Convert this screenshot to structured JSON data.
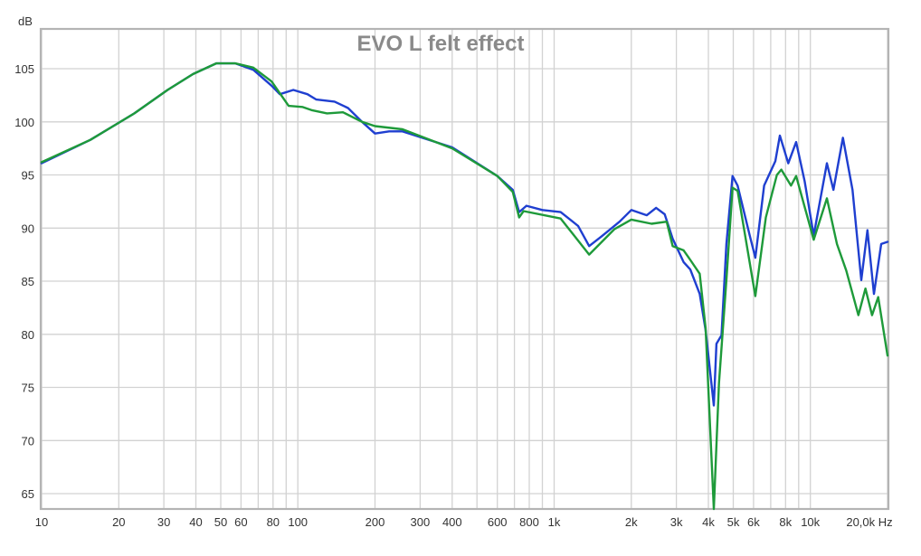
{
  "chart_data": {
    "type": "line",
    "title": "EVO L felt effect",
    "xlabel": "Hz",
    "ylabel": "dB",
    "xscale": "log",
    "xlim": [
      10,
      20000
    ],
    "ylim": [
      63.7,
      108.9
    ],
    "grid": true,
    "legend": null,
    "x_ticks": [
      {
        "value": 10,
        "label": "10"
      },
      {
        "value": 20,
        "label": "20"
      },
      {
        "value": 30,
        "label": "30"
      },
      {
        "value": 40,
        "label": "40"
      },
      {
        "value": 50,
        "label": "50"
      },
      {
        "value": 60,
        "label": "60"
      },
      {
        "value": 80,
        "label": "80"
      },
      {
        "value": 100,
        "label": "100"
      },
      {
        "value": 200,
        "label": "200"
      },
      {
        "value": 300,
        "label": "300"
      },
      {
        "value": 400,
        "label": "400"
      },
      {
        "value": 600,
        "label": "600"
      },
      {
        "value": 800,
        "label": "800"
      },
      {
        "value": 1000,
        "label": "1k"
      },
      {
        "value": 2000,
        "label": "2k"
      },
      {
        "value": 3000,
        "label": "3k"
      },
      {
        "value": 4000,
        "label": "4k"
      },
      {
        "value": 5000,
        "label": "5k"
      },
      {
        "value": 6000,
        "label": "6k"
      },
      {
        "value": 8000,
        "label": "8k"
      },
      {
        "value": 10000,
        "label": "10k"
      },
      {
        "value": 20000,
        "label": "20,0k Hz"
      }
    ],
    "x_gridlines": [
      10,
      20,
      30,
      40,
      50,
      60,
      70,
      80,
      90,
      100,
      200,
      300,
      400,
      500,
      600,
      700,
      800,
      900,
      1000,
      2000,
      3000,
      4000,
      5000,
      6000,
      7000,
      8000,
      9000,
      10000,
      20000
    ],
    "y_ticks": [
      105,
      100,
      95,
      90,
      85,
      80,
      75,
      70,
      65
    ],
    "series": [
      {
        "name": "blue",
        "color": "#1f3fd0",
        "points": [
          [
            10,
            96.1
          ],
          [
            15.5,
            98.3
          ],
          [
            23,
            100.8
          ],
          [
            31,
            103.0
          ],
          [
            39,
            104.5
          ],
          [
            48,
            105.5
          ],
          [
            57,
            105.5
          ],
          [
            67,
            104.9
          ],
          [
            79,
            103.4
          ],
          [
            85,
            102.6
          ],
          [
            96,
            103.0
          ],
          [
            109,
            102.6
          ],
          [
            118,
            102.1
          ],
          [
            139,
            101.9
          ],
          [
            157,
            101.3
          ],
          [
            178,
            100.0
          ],
          [
            200,
            98.9
          ],
          [
            227,
            99.1
          ],
          [
            256,
            99.1
          ],
          [
            400,
            97.6
          ],
          [
            600,
            94.9
          ],
          [
            690,
            93.6
          ],
          [
            730,
            91.5
          ],
          [
            780,
            92.1
          ],
          [
            900,
            91.7
          ],
          [
            1060,
            91.5
          ],
          [
            1240,
            90.2
          ],
          [
            1370,
            88.3
          ],
          [
            1530,
            89.2
          ],
          [
            1800,
            90.6
          ],
          [
            2000,
            91.7
          ],
          [
            2300,
            91.2
          ],
          [
            2500,
            91.9
          ],
          [
            2700,
            91.3
          ],
          [
            2900,
            89.0
          ],
          [
            3200,
            86.8
          ],
          [
            3400,
            86.1
          ],
          [
            3700,
            83.8
          ],
          [
            3900,
            80.4
          ],
          [
            4200,
            73.3
          ],
          [
            4300,
            79.1
          ],
          [
            4500,
            79.9
          ],
          [
            4700,
            88.5
          ],
          [
            4970,
            94.9
          ],
          [
            5200,
            94.0
          ],
          [
            5800,
            89.3
          ],
          [
            6100,
            87.2
          ],
          [
            6600,
            94.0
          ],
          [
            7300,
            96.3
          ],
          [
            7600,
            98.7
          ],
          [
            8200,
            96.1
          ],
          [
            8800,
            98.1
          ],
          [
            9500,
            94.4
          ],
          [
            10300,
            89.3
          ],
          [
            11600,
            96.1
          ],
          [
            12300,
            93.6
          ],
          [
            13400,
            98.5
          ],
          [
            14600,
            93.6
          ],
          [
            15800,
            85.1
          ],
          [
            16700,
            89.8
          ],
          [
            17700,
            83.8
          ],
          [
            18900,
            88.5
          ],
          [
            20000,
            88.7
          ]
        ]
      },
      {
        "name": "green",
        "color": "#1e9a3a",
        "points": [
          [
            10,
            96.2
          ],
          [
            15.5,
            98.3
          ],
          [
            23,
            100.8
          ],
          [
            31,
            103.0
          ],
          [
            39,
            104.5
          ],
          [
            48,
            105.5
          ],
          [
            57,
            105.5
          ],
          [
            67,
            105.1
          ],
          [
            79,
            103.8
          ],
          [
            92,
            101.5
          ],
          [
            104,
            101.4
          ],
          [
            113,
            101.1
          ],
          [
            130,
            100.8
          ],
          [
            150,
            100.9
          ],
          [
            178,
            100.0
          ],
          [
            200,
            99.6
          ],
          [
            256,
            99.3
          ],
          [
            400,
            97.5
          ],
          [
            600,
            94.9
          ],
          [
            690,
            93.4
          ],
          [
            730,
            91.0
          ],
          [
            760,
            91.6
          ],
          [
            1060,
            90.9
          ],
          [
            1370,
            87.5
          ],
          [
            1720,
            89.9
          ],
          [
            2000,
            90.8
          ],
          [
            2400,
            90.4
          ],
          [
            2750,
            90.6
          ],
          [
            2900,
            88.3
          ],
          [
            3200,
            87.9
          ],
          [
            3400,
            87.0
          ],
          [
            3700,
            85.7
          ],
          [
            3900,
            80.6
          ],
          [
            4200,
            63.5
          ],
          [
            4400,
            75.4
          ],
          [
            4700,
            85.1
          ],
          [
            4970,
            93.8
          ],
          [
            5200,
            93.5
          ],
          [
            6100,
            83.6
          ],
          [
            6700,
            91.0
          ],
          [
            7400,
            95.0
          ],
          [
            7700,
            95.5
          ],
          [
            8400,
            94.0
          ],
          [
            8800,
            94.9
          ],
          [
            10300,
            88.9
          ],
          [
            11600,
            92.8
          ],
          [
            12700,
            88.5
          ],
          [
            13800,
            86.0
          ],
          [
            15400,
            81.8
          ],
          [
            16400,
            84.3
          ],
          [
            17400,
            81.8
          ],
          [
            18400,
            83.5
          ],
          [
            20000,
            78.0
          ]
        ]
      }
    ]
  }
}
